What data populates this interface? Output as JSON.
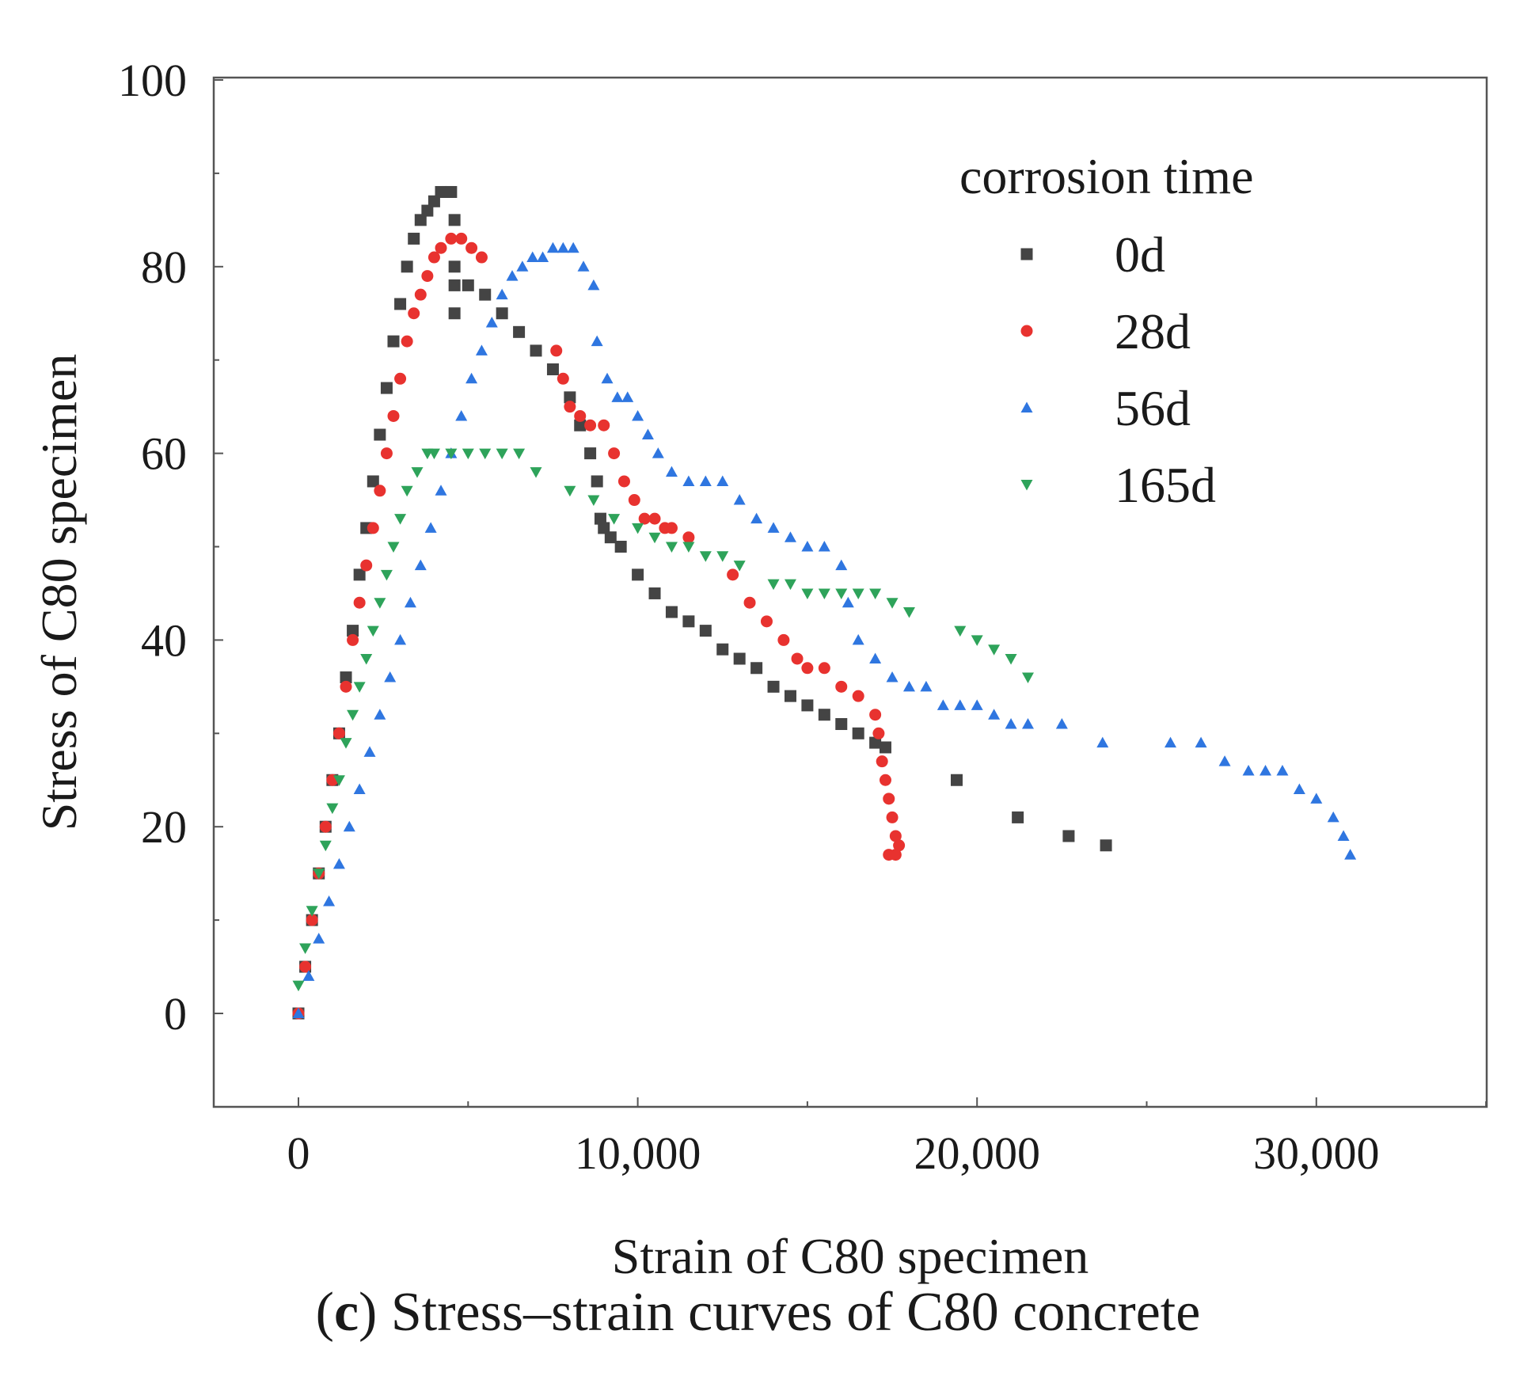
{
  "chart_data": {
    "type": "scatter",
    "title": "",
    "xlabel": "Strain of C80 specimen",
    "ylabel": "Stress of C80 specimen",
    "xlim": [
      -2500,
      35000
    ],
    "ylim": [
      -10,
      100
    ],
    "xticks": [
      0,
      10000,
      20000,
      30000
    ],
    "xtick_labels": [
      "0",
      "10,000",
      "20,000",
      "30,000"
    ],
    "yticks": [
      0,
      20,
      40,
      60,
      80,
      100
    ],
    "ytick_labels": [
      "0",
      "20",
      "40",
      "60",
      "80",
      "100"
    ],
    "grid": false,
    "legend": {
      "title": "corrosion time",
      "position": "top-right"
    },
    "series": [
      {
        "name": "0d",
        "marker": "square",
        "color": "#444444",
        "x": [
          0,
          200,
          400,
          600,
          800,
          1000,
          1200,
          1400,
          1600,
          1800,
          2000,
          2200,
          2400,
          2600,
          2800,
          3000,
          3200,
          3400,
          3600,
          3800,
          4000,
          4200,
          4400,
          4500,
          4600,
          4600,
          4600,
          4600,
          5000,
          5500,
          6000,
          6500,
          7000,
          7500,
          8000,
          8300,
          8600,
          8800,
          8900,
          9000,
          9200,
          9500,
          10000,
          10500,
          11000,
          11500,
          12000,
          12500,
          13000,
          13500,
          14000,
          14500,
          15000,
          15500,
          16000,
          16500,
          17000,
          17300,
          19400,
          21200,
          22700,
          23800
        ],
        "y": [
          0,
          5,
          10,
          15,
          20,
          25,
          30,
          36,
          41,
          47,
          52,
          57,
          62,
          67,
          72,
          76,
          80,
          83,
          85,
          86,
          87,
          88,
          88,
          88,
          85,
          80,
          78,
          75,
          78,
          77,
          75,
          73,
          71,
          69,
          66,
          63,
          60,
          57,
          53,
          52,
          51,
          50,
          47,
          45,
          43,
          42,
          41,
          39,
          38,
          37,
          35,
          34,
          33,
          32,
          31,
          30,
          29,
          28.5,
          25,
          21,
          19,
          18
        ]
      },
      {
        "name": "28d",
        "marker": "circle",
        "color": "#e8322f",
        "x": [
          0,
          200,
          400,
          600,
          800,
          1000,
          1200,
          1400,
          1600,
          1800,
          2000,
          2200,
          2400,
          2600,
          2800,
          3000,
          3200,
          3400,
          3600,
          3800,
          4000,
          4200,
          4500,
          4800,
          5100,
          5400,
          7600,
          7800,
          8000,
          8300,
          8600,
          9000,
          9300,
          9600,
          9900,
          10200,
          10500,
          10800,
          11000,
          11500,
          12800,
          13300,
          13800,
          14300,
          14700,
          15000,
          15500,
          16000,
          16500,
          17000,
          17100,
          17200,
          17300,
          17400,
          17500,
          17600,
          17700,
          17400,
          17600
        ],
        "y": [
          0,
          5,
          10,
          15,
          20,
          25,
          30,
          35,
          40,
          44,
          48,
          52,
          56,
          60,
          64,
          68,
          72,
          75,
          77,
          79,
          81,
          82,
          83,
          83,
          82,
          81,
          71,
          68,
          65,
          64,
          63,
          63,
          60,
          57,
          55,
          53,
          53,
          52,
          52,
          51,
          47,
          44,
          42,
          40,
          38,
          37,
          37,
          35,
          34,
          32,
          30,
          27,
          25,
          23,
          21,
          19,
          18,
          17,
          17
        ]
      },
      {
        "name": "56d",
        "marker": "triangle-up",
        "color": "#2f76e0",
        "x": [
          0,
          300,
          600,
          900,
          1200,
          1500,
          1800,
          2100,
          2400,
          2700,
          3000,
          3300,
          3600,
          3900,
          4200,
          4500,
          4800,
          5100,
          5400,
          5700,
          6000,
          6300,
          6600,
          6900,
          7200,
          7500,
          7800,
          8100,
          8400,
          8700,
          8800,
          9100,
          9400,
          9700,
          10000,
          10300,
          10600,
          11000,
          11500,
          12000,
          12500,
          13000,
          13500,
          14000,
          14500,
          15000,
          15500,
          16000,
          16200,
          16500,
          17000,
          17500,
          18000,
          18500,
          19000,
          19500,
          20000,
          20500,
          21000,
          21500,
          22500,
          23700,
          25700,
          26600,
          27300,
          28000,
          28500,
          29000,
          29500,
          30000,
          30500,
          30800,
          31000
        ],
        "y": [
          0,
          4,
          8,
          12,
          16,
          20,
          24,
          28,
          32,
          36,
          40,
          44,
          48,
          52,
          56,
          60,
          64,
          68,
          71,
          74,
          77,
          79,
          80,
          81,
          81,
          82,
          82,
          82,
          80,
          78,
          72,
          68,
          66,
          66,
          64,
          62,
          60,
          58,
          57,
          57,
          57,
          55,
          53,
          52,
          51,
          50,
          50,
          48,
          44,
          40,
          38,
          36,
          35,
          35,
          33,
          33,
          33,
          32,
          31,
          31,
          31,
          29,
          29,
          29,
          27,
          26,
          26,
          26,
          24,
          23,
          21,
          19,
          17
        ]
      },
      {
        "name": "165d",
        "marker": "triangle-down",
        "color": "#2ea35a",
        "x": [
          0,
          200,
          400,
          600,
          800,
          1000,
          1200,
          1400,
          1600,
          1800,
          2000,
          2200,
          2400,
          2600,
          2800,
          3000,
          3200,
          3500,
          3800,
          4000,
          4500,
          5000,
          5500,
          6000,
          6500,
          7000,
          8000,
          8700,
          9300,
          10000,
          10500,
          11000,
          11500,
          12000,
          12500,
          13000,
          14000,
          14500,
          15000,
          15500,
          16000,
          16500,
          17000,
          17500,
          18000,
          19500,
          20000,
          20500,
          21000,
          21500
        ],
        "y": [
          3,
          7,
          11,
          15,
          18,
          22,
          25,
          29,
          32,
          35,
          38,
          41,
          44,
          47,
          50,
          53,
          56,
          58,
          60,
          60,
          60,
          60,
          60,
          60,
          60,
          58,
          56,
          55,
          53,
          52,
          51,
          50,
          50,
          49,
          49,
          48,
          46,
          46,
          45,
          45,
          45,
          45,
          45,
          44,
          43,
          41,
          40,
          39,
          38,
          36
        ]
      }
    ]
  },
  "caption": {
    "label": "c",
    "open": "(",
    "close": ")",
    "text": " Stress–strain curves of C80 concrete"
  }
}
